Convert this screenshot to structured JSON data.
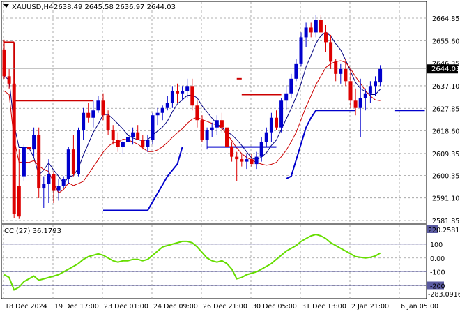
{
  "chart_data": [
    {
      "type": "candlestick",
      "title": "XAUUSD,H4",
      "ohlc_label": "2638.49 2645.58 2636.97 2644.03",
      "current_price": 2644.03,
      "current_price_label": "2644.03",
      "ylim": [
        2581.85,
        2670.0
      ],
      "y_ticks": [
        {
          "v": 2664.85,
          "label": "2664.85"
        },
        {
          "v": 2655.6,
          "label": "2655.60"
        },
        {
          "v": 2646.35,
          "label": "2646.35"
        },
        {
          "v": 2637.1,
          "label": "2637.10"
        },
        {
          "v": 2627.85,
          "label": "2627.85"
        },
        {
          "v": 2618.6,
          "label": "2618.60"
        },
        {
          "v": 2609.35,
          "label": "2609.35"
        },
        {
          "v": 2600.35,
          "label": "2600.35"
        },
        {
          "v": 2591.1,
          "label": "2591.10"
        },
        {
          "v": 2581.85,
          "label": "2581.85"
        }
      ],
      "x_labels": [
        {
          "i": 0,
          "label": "18 Dec 2024"
        },
        {
          "i": 10,
          "label": "19 Dec 17:00"
        },
        {
          "i": 20,
          "label": "23 Dec 01:00"
        },
        {
          "i": 30,
          "label": "24 Dec 09:00"
        },
        {
          "i": 40,
          "label": "26 Dec 21:00"
        },
        {
          "i": 50,
          "label": "30 Dec 05:00"
        },
        {
          "i": 60,
          "label": "31 Dec 13:00"
        },
        {
          "i": 70,
          "label": "2 Jan 21:00"
        },
        {
          "i": 80,
          "label": "6 Jan 05:00"
        }
      ],
      "candles": [
        [
          2652.0,
          2656.0,
          2640.0,
          2641.0
        ],
        [
          2641.0,
          2644.0,
          2636.0,
          2638.0
        ],
        [
          2638.0,
          2640.0,
          2583.0,
          2584.5
        ],
        [
          2596.0,
          2611.0,
          2582.5,
          2583.5
        ],
        [
          2600.0,
          2613.0,
          2598.0,
          2612.0
        ],
        [
          2612.0,
          2619.0,
          2609.0,
          2611.0
        ],
        [
          2611.0,
          2620.0,
          2608.0,
          2617.0
        ],
        [
          2617.0,
          2620.0,
          2591.0,
          2595.0
        ],
        [
          2595.0,
          2600.0,
          2587.0,
          2597.0
        ],
        [
          2597.0,
          2607.0,
          2589.0,
          2601.0
        ],
        [
          2601.0,
          2602.0,
          2589.0,
          2594.0
        ],
        [
          2594.0,
          2599.0,
          2590.0,
          2596.0
        ],
        [
          2596.0,
          2600.0,
          2595.0,
          2599.0
        ],
        [
          2599.0,
          2612.0,
          2597.0,
          2611.0
        ],
        [
          2611.0,
          2617.0,
          2600.0,
          2601.0
        ],
        [
          2601.0,
          2620.0,
          2600.0,
          2619.0
        ],
        [
          2619.0,
          2628.0,
          2615.0,
          2626.0
        ],
        [
          2626.0,
          2630.0,
          2622.0,
          2624.0
        ],
        [
          2624.0,
          2631.0,
          2620.0,
          2627.0
        ],
        [
          2627.0,
          2633.0,
          2626.0,
          2631.0
        ],
        [
          2631.0,
          2634.0,
          2623.0,
          2625.0
        ],
        [
          2625.0,
          2627.0,
          2617.0,
          2619.0
        ],
        [
          2619.0,
          2621.0,
          2613.0,
          2615.0
        ],
        [
          2615.0,
          2618.0,
          2610.0,
          2612.0
        ],
        [
          2612.0,
          2615.0,
          2609.0,
          2614.0
        ],
        [
          2614.0,
          2617.0,
          2612.0,
          2616.0
        ],
        [
          2616.0,
          2620.0,
          2613.0,
          2618.0
        ],
        [
          2618.0,
          2621.0,
          2615.0,
          2615.0
        ],
        [
          2615.0,
          2617.0,
          2611.0,
          2612.0
        ],
        [
          2612.0,
          2617.0,
          2610.0,
          2615.0
        ],
        [
          2615.0,
          2626.0,
          2613.0,
          2625.0
        ],
        [
          2625.0,
          2628.0,
          2621.0,
          2626.0
        ],
        [
          2626.0,
          2629.0,
          2623.0,
          2628.0
        ],
        [
          2628.0,
          2633.0,
          2627.0,
          2630.0
        ],
        [
          2630.0,
          2637.0,
          2628.0,
          2635.0
        ],
        [
          2635.0,
          2638.0,
          2630.0,
          2634.0
        ],
        [
          2634.0,
          2637.0,
          2631.0,
          2635.0
        ],
        [
          2635.0,
          2640.0,
          2632.0,
          2637.0
        ],
        [
          2637.0,
          2640.0,
          2627.0,
          2629.0
        ],
        [
          2629.0,
          2631.0,
          2620.0,
          2623.0
        ],
        [
          2623.0,
          2625.0,
          2614.0,
          2615.0
        ],
        [
          2615.0,
          2620.0,
          2611.0,
          2619.0
        ],
        [
          2619.0,
          2622.0,
          2616.0,
          2620.0
        ],
        [
          2620.0,
          2625.0,
          2617.0,
          2623.0
        ],
        [
          2623.0,
          2626.0,
          2618.0,
          2620.0
        ],
        [
          2620.0,
          2622.0,
          2610.0,
          2612.0
        ],
        [
          2612.0,
          2614.0,
          2606.0,
          2608.0
        ],
        [
          2608.0,
          2610.0,
          2598.0,
          2607.0
        ],
        [
          2607.0,
          2609.0,
          2604.0,
          2606.0
        ],
        [
          2606.0,
          2609.0,
          2603.0,
          2607.0
        ],
        [
          2607.0,
          2609.0,
          2604.0,
          2605.0
        ],
        [
          2605.0,
          2610.0,
          2603.0,
          2608.0
        ],
        [
          2608.0,
          2616.0,
          2606.0,
          2614.0
        ],
        [
          2614.0,
          2620.0,
          2612.0,
          2618.0
        ],
        [
          2618.0,
          2626.0,
          2614.0,
          2624.0
        ],
        [
          2624.0,
          2627.0,
          2619.0,
          2620.0
        ],
        [
          2620.0,
          2632.0,
          2618.0,
          2631.0
        ],
        [
          2631.0,
          2637.0,
          2627.0,
          2634.0
        ],
        [
          2634.0,
          2642.0,
          2632.0,
          2640.0
        ],
        [
          2640.0,
          2648.0,
          2639.0,
          2646.0
        ],
        [
          2646.0,
          2659.0,
          2645.0,
          2657.0
        ],
        [
          2657.0,
          2663.0,
          2653.0,
          2661.0
        ],
        [
          2661.0,
          2663.0,
          2657.0,
          2659.0
        ],
        [
          2659.0,
          2666.0,
          2657.0,
          2664.0
        ],
        [
          2664.0,
          2666.0,
          2659.0,
          2659.0
        ],
        [
          2659.0,
          2662.0,
          2651.0,
          2655.0
        ],
        [
          2655.0,
          2658.0,
          2644.0,
          2647.0
        ],
        [
          2647.0,
          2648.0,
          2639.0,
          2642.0
        ],
        [
          2642.0,
          2646.0,
          2638.0,
          2644.0
        ],
        [
          2644.0,
          2648.0,
          2637.0,
          2639.0
        ],
        [
          2639.0,
          2644.0,
          2628.0,
          2631.0
        ],
        [
          2631.0,
          2636.0,
          2625.0,
          2628.0
        ],
        [
          2628.0,
          2640.0,
          2616.0,
          2632.0
        ],
        [
          2632.0,
          2636.0,
          2627.0,
          2634.0
        ],
        [
          2634.0,
          2639.0,
          2630.0,
          2637.0
        ],
        [
          2637.0,
          2641.0,
          2633.0,
          2639.0
        ],
        [
          2638.49,
          2645.58,
          2636.97,
          2644.03
        ]
      ],
      "cci_title": "CCI(27) 36.1793",
      "cci_current": 36.1793,
      "cci_ylim": [
        -283.0916,
        220.2581
      ],
      "cci_range_labels": [
        "220.2581",
        "-283.0916"
      ],
      "cci_ticks": [
        {
          "v": 100,
          "label": "100"
        },
        {
          "v": 0,
          "label": "0.00"
        },
        {
          "v": -100,
          "label": "-100"
        },
        {
          "v": -200,
          "label": "-200"
        }
      ],
      "cci": [
        -120,
        -140,
        -230,
        -210,
        -170,
        -150,
        -130,
        -160,
        -150,
        -140,
        -130,
        -120,
        -100,
        -80,
        -60,
        -40,
        -10,
        10,
        20,
        30,
        20,
        0,
        -20,
        -30,
        -20,
        -20,
        -10,
        -10,
        -20,
        -10,
        20,
        50,
        80,
        90,
        100,
        110,
        120,
        120,
        110,
        80,
        40,
        0,
        -20,
        -30,
        -20,
        -40,
        -80,
        -150,
        -140,
        -120,
        -110,
        -100,
        -80,
        -60,
        -40,
        -10,
        20,
        50,
        70,
        90,
        120,
        140,
        160,
        170,
        160,
        140,
        110,
        90,
        70,
        50,
        30,
        10,
        5,
        0,
        5,
        15,
        36.18
      ],
      "envelope": [
        {
          "x1": 0,
          "x2": 2,
          "v": 2655.0
        },
        {
          "x1": 2,
          "x2": 18,
          "v": 2631.0
        },
        {
          "x1": 41,
          "x2": 55,
          "v": 2612.0
        },
        {
          "x1": 47,
          "x2": 48,
          "v": 2640.0
        },
        {
          "x1": 48,
          "x2": 56,
          "v": 2633.5
        },
        {
          "x1": 20,
          "x2": 29,
          "v": 2586.0
        },
        {
          "x1": 63,
          "x2": 71,
          "v": 2627.0
        },
        {
          "x1": 79,
          "x2": 85,
          "v": 2627.0
        }
      ]
    }
  ]
}
